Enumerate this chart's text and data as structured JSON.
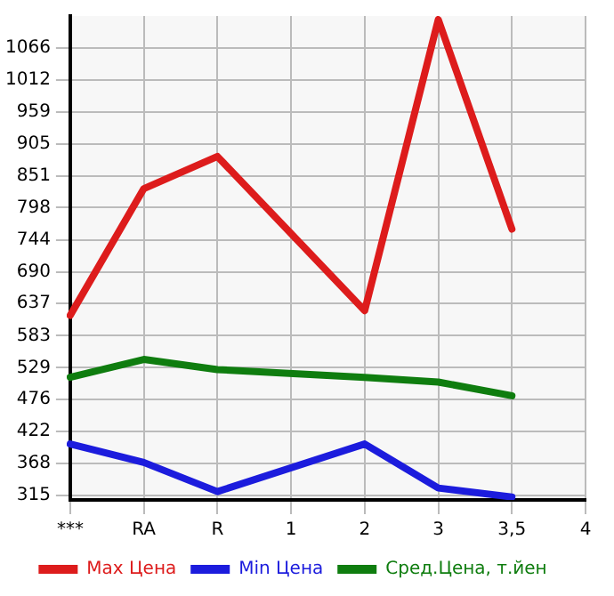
{
  "chart_data": {
    "type": "line",
    "categories": [
      "***",
      "RA",
      "R",
      "1",
      "2",
      "3",
      "3,5",
      "4"
    ],
    "series": [
      {
        "name": "Max Цена",
        "color": "#dd1c1c",
        "values": [
          617,
          830,
          884,
          null,
          625,
          1114,
          762,
          null
        ]
      },
      {
        "name": "Min Цена",
        "color": "#1c1cdd",
        "values": [
          401,
          370,
          321,
          null,
          401,
          327,
          312,
          null
        ]
      },
      {
        "name": "Сред.Цена, т.йен",
        "color": "#0f7d0f",
        "values": [
          513,
          543,
          526,
          null,
          513,
          505,
          482,
          null
        ]
      }
    ],
    "ylim": [
      307,
      1120
    ],
    "yticks": [
      315,
      368,
      422,
      476,
      529,
      583,
      637,
      690,
      744,
      798,
      851,
      905,
      959,
      1012,
      1066
    ],
    "grid": true,
    "legend": "bottom",
    "marker": "none",
    "line_style": "solid"
  }
}
